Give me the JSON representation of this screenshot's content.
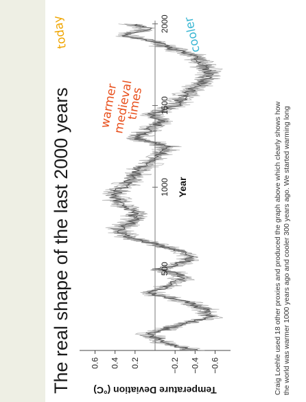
{
  "side_panel_color": "#eeefe4",
  "title": "The real shape of the last 2000 years",
  "caption": [
    "Craig  Loehle used 18 other proxies and produced the graph above which clearly shows how",
    "the world was warmer 1000 years ago and cooler 300 years ago. We started warming long"
  ],
  "chart_data": {
    "type": "line",
    "title": "The real shape of the last 2000 years",
    "xlabel": "Year",
    "ylabel": "Temperature Deviation (°C)",
    "xlim": [
      0,
      2020
    ],
    "ylim": [
      -0.72,
      0.72
    ],
    "xticks": [
      500,
      1000,
      1500,
      2000
    ],
    "xtick_labels": [
      "500",
      "1000",
      "1500",
      "2000"
    ],
    "yticks": [
      0.6,
      0.4,
      0.2,
      -0.2,
      -0.4,
      -0.6
    ],
    "ytick_labels": [
      "0.6",
      "0.4",
      "0.2",
      "−0.2",
      "−0.4",
      "−0.6"
    ],
    "line_color": "#555555",
    "series": [
      {
        "x": [
          0,
          50,
          100,
          150,
          200,
          250,
          300,
          350,
          400,
          450,
          500,
          550,
          600,
          650,
          700,
          750,
          800,
          850,
          900,
          950,
          1000,
          1050,
          1100,
          1150,
          1200,
          1250,
          1300,
          1350,
          1400,
          1450,
          1500,
          1550,
          1600,
          1650,
          1700,
          1750,
          1800,
          1850,
          1900,
          1935,
          1970,
          2000
        ],
        "values": [
          -0.4,
          -0.08,
          0.08,
          -0.2,
          -0.55,
          -0.5,
          -0.3,
          0.05,
          -0.15,
          -0.3,
          -0.05,
          -0.35,
          -0.3,
          0.0,
          0.3,
          0.35,
          0.2,
          0.22,
          0.35,
          0.42,
          0.32,
          0.22,
          0.18,
          0.05,
          -0.05,
          -0.12,
          0.2,
          0.05,
          -0.05,
          0.02,
          -0.2,
          -0.28,
          -0.38,
          -0.5,
          -0.55,
          -0.48,
          -0.42,
          -0.15,
          0.05,
          0.35,
          0.05,
          0.25
        ]
      }
    ],
    "annotations": [
      {
        "text": "warmer",
        "color": "#e8501d"
      },
      {
        "text": "medieval",
        "color": "#e8501d"
      },
      {
        "text": "times",
        "color": "#e8501d"
      },
      {
        "text": "today",
        "color": "#f0a500"
      },
      {
        "text": "cooler",
        "color": "#38b6d3"
      }
    ]
  }
}
